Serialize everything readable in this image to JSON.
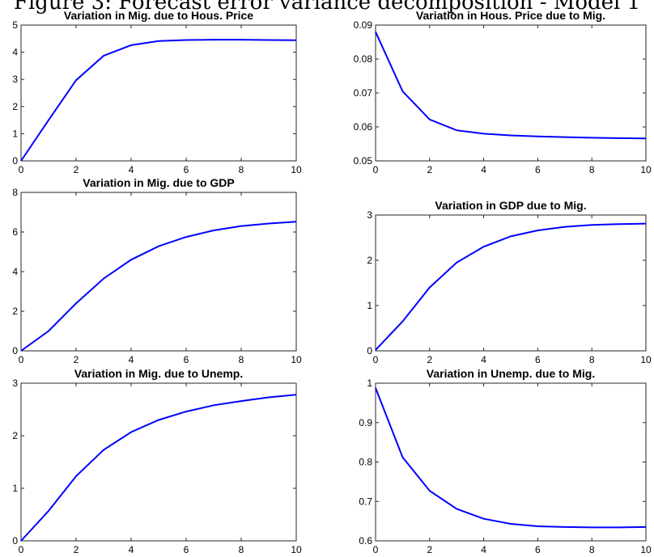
{
  "figure_title": "Figure 3: Forecast error variance decomposition - Model 1",
  "colors": {
    "series": "#0000ff",
    "axes": "#262626"
  },
  "chart_data": [
    {
      "type": "line",
      "title": "Variation in Mig. due to Hous. Price",
      "xlabel": "",
      "ylabel": "",
      "xlim": [
        0,
        10
      ],
      "ylim": [
        0,
        5
      ],
      "xticks": [
        0,
        2,
        4,
        6,
        8,
        10
      ],
      "yticks": [
        0,
        1,
        2,
        3,
        4,
        5
      ],
      "ytick_labels": [
        "0",
        "1",
        "2",
        "3",
        "4",
        "5"
      ],
      "grid": false,
      "x": [
        0,
        1,
        2,
        3,
        4,
        5,
        6,
        7,
        8,
        9,
        10
      ],
      "y": [
        0,
        1.5,
        2.97,
        3.87,
        4.26,
        4.41,
        4.45,
        4.46,
        4.46,
        4.45,
        4.44
      ]
    },
    {
      "type": "line",
      "title": "Variation in Hous. Price due to Mig.",
      "xlabel": "",
      "ylabel": "",
      "xlim": [
        0,
        10
      ],
      "ylim": [
        0.05,
        0.09
      ],
      "xticks": [
        0,
        2,
        4,
        6,
        8,
        10
      ],
      "yticks": [
        0.05,
        0.06,
        0.07,
        0.08,
        0.09
      ],
      "ytick_labels": [
        "0.05",
        "0.06",
        "0.07",
        "0.08",
        "0.09"
      ],
      "grid": false,
      "x": [
        0,
        1,
        2,
        3,
        4,
        5,
        6,
        7,
        8,
        9,
        10
      ],
      "y": [
        0.088,
        0.0705,
        0.0622,
        0.059,
        0.058,
        0.0575,
        0.0572,
        0.057,
        0.0568,
        0.0567,
        0.0566
      ]
    },
    {
      "type": "line",
      "title": "Variation in Mig. due to GDP",
      "xlabel": "",
      "ylabel": "",
      "xlim": [
        0,
        10
      ],
      "ylim": [
        0,
        8
      ],
      "xticks": [
        0,
        2,
        4,
        6,
        8,
        10
      ],
      "yticks": [
        0,
        2,
        4,
        6,
        8
      ],
      "ytick_labels": [
        "0",
        "2",
        "4",
        "6",
        "8"
      ],
      "grid": false,
      "x": [
        0,
        1,
        2,
        3,
        4,
        5,
        6,
        7,
        8,
        9,
        10
      ],
      "y": [
        0,
        1.0,
        2.4,
        3.65,
        4.6,
        5.28,
        5.75,
        6.08,
        6.3,
        6.43,
        6.52
      ]
    },
    {
      "type": "line",
      "title": "Variation in GDP due to Mig.",
      "xlabel": "",
      "ylabel": "",
      "xlim": [
        0,
        10
      ],
      "ylim": [
        0,
        3
      ],
      "xticks": [
        0,
        2,
        4,
        6,
        8,
        10
      ],
      "yticks": [
        0,
        1,
        2,
        3
      ],
      "ytick_labels": [
        "0",
        "1",
        "2",
        "3"
      ],
      "grid": false,
      "x": [
        0,
        1,
        2,
        3,
        4,
        5,
        6,
        7,
        8,
        9,
        10
      ],
      "y": [
        0.02,
        0.65,
        1.4,
        1.95,
        2.3,
        2.53,
        2.66,
        2.74,
        2.78,
        2.8,
        2.81
      ]
    },
    {
      "type": "line",
      "title": "Variation in Mig. due to Unemp.",
      "xlabel": "",
      "ylabel": "",
      "xlim": [
        0,
        10
      ],
      "ylim": [
        0,
        3
      ],
      "xticks": [
        0,
        2,
        4,
        6,
        8,
        10
      ],
      "yticks": [
        0,
        1,
        2,
        3
      ],
      "ytick_labels": [
        "0",
        "1",
        "2",
        "3"
      ],
      "grid": false,
      "x": [
        0,
        1,
        2,
        3,
        4,
        5,
        6,
        7,
        8,
        9,
        10
      ],
      "y": [
        0,
        0.57,
        1.23,
        1.73,
        2.07,
        2.3,
        2.46,
        2.58,
        2.66,
        2.73,
        2.78
      ]
    },
    {
      "type": "line",
      "title": "Variation in Unemp. due to Mig.",
      "xlabel": "",
      "ylabel": "",
      "xlim": [
        0,
        10
      ],
      "ylim": [
        0.6,
        1
      ],
      "xticks": [
        0,
        2,
        4,
        6,
        8,
        10
      ],
      "yticks": [
        0.6,
        0.7,
        0.8,
        0.9,
        1
      ],
      "ytick_labels": [
        "0.6",
        "0.7",
        "0.8",
        "0.9",
        "1"
      ],
      "grid": false,
      "x": [
        0,
        1,
        2,
        3,
        4,
        5,
        6,
        7,
        8,
        9,
        10
      ],
      "y": [
        0.988,
        0.812,
        0.727,
        0.681,
        0.656,
        0.643,
        0.637,
        0.635,
        0.634,
        0.634,
        0.635
      ]
    }
  ]
}
